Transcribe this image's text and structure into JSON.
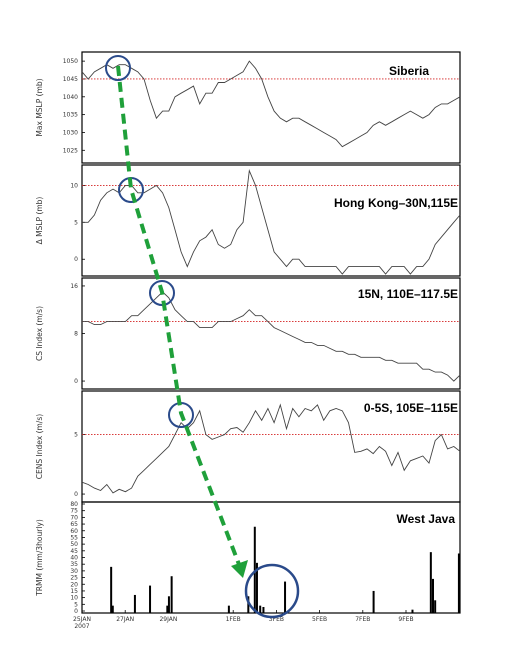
{
  "chart_data": {
    "type": "line",
    "x_ticks": [
      "25JAN\n2007",
      "27JAN",
      "29JAN",
      "1FEB",
      "3FEB",
      "5FEB",
      "7FEB",
      "9FEB"
    ],
    "x_ticks_lines": [
      [
        "25JAN",
        "2007"
      ],
      [
        "27JAN"
      ],
      [
        "29JAN"
      ],
      [
        "1FEB"
      ],
      [
        "3FEB"
      ],
      [
        "5FEB"
      ],
      [
        "7FEB"
      ],
      [
        "9FEB"
      ]
    ],
    "panels": [
      {
        "title": "Siberia",
        "ylabel": "Max MSLP (mb)",
        "ylim": [
          1022,
          1052
        ],
        "yticks": [
          1025,
          1030,
          1035,
          1040,
          1045,
          1050
        ],
        "threshold": 1045,
        "type": "line",
        "values": [
          1047,
          1045,
          1047,
          1048,
          1049,
          1048,
          1049,
          1049,
          1048,
          1047,
          1045,
          1039,
          1034,
          1036,
          1036,
          1040,
          1041,
          1042,
          1043,
          1038,
          1041,
          1041,
          1044,
          1044,
          1045,
          1046,
          1047,
          1050,
          1048,
          1045,
          1040,
          1036,
          1034,
          1033,
          1034,
          1034,
          1033,
          1032,
          1031,
          1030,
          1029,
          1028,
          1026,
          1027,
          1028,
          1029,
          1030,
          1032,
          1033,
          1032,
          1033,
          1034,
          1035,
          1036,
          1035,
          1034,
          1035,
          1037,
          1038,
          1038,
          1039,
          1040
        ]
      },
      {
        "title": "Hong Kong–30N,115E",
        "ylabel": "Δ MSLP (mb)",
        "ylim": [
          -2,
          12.5
        ],
        "yticks": [
          0,
          5,
          10
        ],
        "threshold": 10,
        "type": "line",
        "values": [
          5,
          5,
          6,
          8,
          9,
          9.5,
          9,
          10,
          10,
          9,
          9,
          9.5,
          10,
          9,
          7,
          4,
          1,
          -1,
          1,
          2.5,
          3,
          4,
          2,
          1.5,
          2,
          4,
          5,
          12,
          10,
          7,
          4,
          1,
          0,
          -1,
          0,
          0,
          -1,
          -1,
          -1,
          -1,
          -1,
          -1,
          -2,
          -1,
          -1,
          -1,
          -1,
          -1,
          -1,
          -2,
          -1,
          -1,
          -1,
          -2,
          -1,
          -1,
          0,
          2,
          3,
          4,
          5,
          6
        ]
      },
      {
        "title": "15N, 110E–117.5E",
        "ylabel": "CS Index (m/s)",
        "ylim": [
          -1,
          17
        ],
        "yticks": [
          0,
          8,
          16
        ],
        "threshold": 10,
        "type": "line",
        "values": [
          10,
          10,
          9.5,
          9.5,
          10,
          10,
          10,
          10,
          11,
          11,
          12,
          13,
          14,
          15,
          14,
          12,
          11,
          10,
          10,
          9,
          9,
          9,
          10,
          10,
          10,
          10.5,
          11,
          12,
          11,
          11,
          10,
          9,
          8.5,
          8,
          7.5,
          7,
          6.5,
          6.5,
          6,
          6,
          5.5,
          5,
          5,
          4.5,
          4.5,
          4,
          4,
          4,
          4,
          3.5,
          3.5,
          3,
          3,
          3,
          3,
          2,
          2,
          1.5,
          1.5,
          1,
          0,
          1
        ]
      },
      {
        "title": "0-5S, 105E–115E",
        "ylabel": "CENS Index (m/s)",
        "ylim": [
          -0.5,
          8.5
        ],
        "yticks": [
          0,
          5
        ],
        "threshold": 5,
        "type": "line",
        "values": [
          1,
          0.8,
          0.5,
          0.3,
          0.8,
          0.1,
          0.4,
          0.2,
          0.5,
          1.5,
          2,
          2.5,
          3,
          3.5,
          4,
          5,
          6,
          5.5,
          6,
          7,
          5,
          4.6,
          4.8,
          5,
          5.5,
          5.6,
          5.2,
          6,
          7,
          6.2,
          7.2,
          6,
          7.5,
          5.5,
          7.2,
          6.5,
          7.2,
          7,
          7.5,
          6.2,
          7,
          7.2,
          7,
          6,
          3.5,
          3.6,
          3.8,
          3.4,
          4,
          3.6,
          2.4,
          3.5,
          2,
          2.8,
          3,
          3.2,
          2.6,
          4.5,
          5,
          3.8,
          4,
          3.6
        ]
      },
      {
        "title": "West Java",
        "ylabel": "TRMM (mm/3hourly)",
        "ylim": [
          0,
          80
        ],
        "yticks": [
          0,
          5,
          10,
          15,
          20,
          25,
          30,
          35,
          40,
          45,
          50,
          55,
          60,
          65,
          70,
          75,
          80
        ],
        "type": "bar",
        "bars": [
          {
            "t": 2.7,
            "v": 33
          },
          {
            "t": 2.85,
            "v": 4
          },
          {
            "t": 4.9,
            "v": 12
          },
          {
            "t": 6.3,
            "v": 19
          },
          {
            "t": 7.9,
            "v": 4
          },
          {
            "t": 8.05,
            "v": 11
          },
          {
            "t": 8.3,
            "v": 26
          },
          {
            "t": 13.6,
            "v": 4
          },
          {
            "t": 15.4,
            "v": 11
          },
          {
            "t": 16.0,
            "v": 63
          },
          {
            "t": 16.2,
            "v": 36
          },
          {
            "t": 16.5,
            "v": 4
          },
          {
            "t": 16.8,
            "v": 3
          },
          {
            "t": 18.8,
            "v": 22
          },
          {
            "t": 27.0,
            "v": 15
          },
          {
            "t": 30.6,
            "v": 1
          },
          {
            "t": 32.3,
            "v": 44
          },
          {
            "t": 32.5,
            "v": 24
          },
          {
            "t": 32.7,
            "v": 8
          },
          {
            "t": 34.9,
            "v": 43
          }
        ]
      }
    ]
  }
}
